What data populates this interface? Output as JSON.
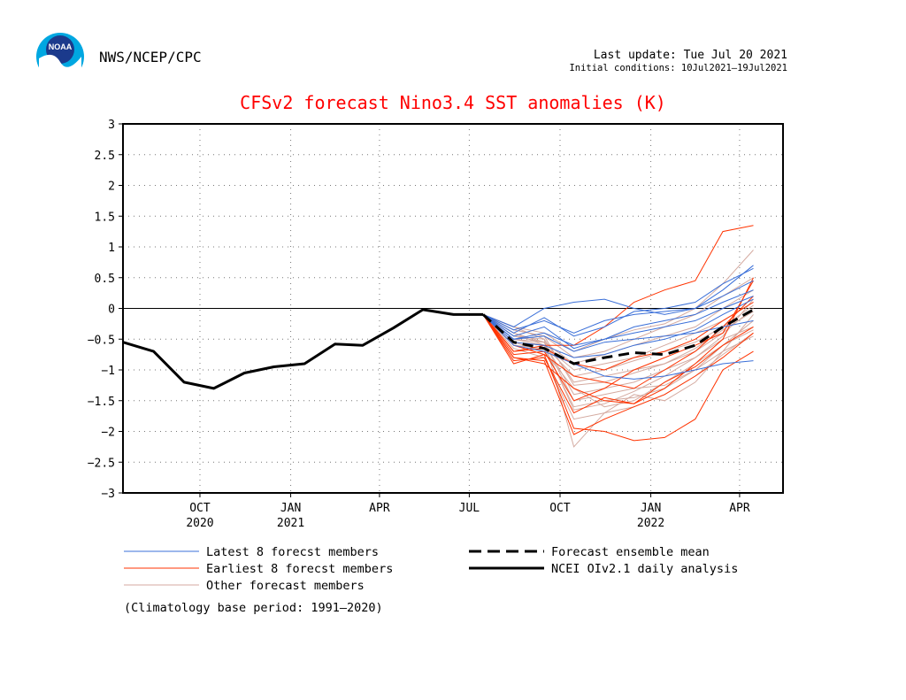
{
  "header": {
    "agency": "NWS/NCEP/CPC",
    "last_update": "Last update: Tue Jul 20 2021",
    "initial_conditions": "Initial conditions: 10Jul2021–19Jul2021",
    "logo_text": "NOAA"
  },
  "chart_data": {
    "type": "line",
    "title": "CFSv2 forecast Nino3.4 SST anomalies (K)",
    "ylim": [
      -3,
      3
    ],
    "yticks": [
      3,
      2.5,
      2,
      1.5,
      1,
      0.5,
      0,
      -0.5,
      -1,
      -1.5,
      -2,
      -2.5,
      -3
    ],
    "ytick_labels": [
      "3",
      "2.5",
      "2",
      "1.5",
      "1",
      "0.5",
      "0",
      "−0.5",
      "−1",
      "−1.5",
      "−2",
      "−2.5",
      "−3"
    ],
    "xlim": [
      "2020-07-15",
      "2022-05-15"
    ],
    "xticks": [
      {
        "date": "2020-10-01",
        "label": "OCT",
        "sublabel": "2020"
      },
      {
        "date": "2021-01-01",
        "label": "JAN",
        "sublabel": "2021"
      },
      {
        "date": "2021-04-01",
        "label": "APR",
        "sublabel": ""
      },
      {
        "date": "2021-07-01",
        "label": "JUL",
        "sublabel": ""
      },
      {
        "date": "2021-10-01",
        "label": "OCT",
        "sublabel": ""
      },
      {
        "date": "2022-01-01",
        "label": "JAN",
        "sublabel": "2022"
      },
      {
        "date": "2022-04-01",
        "label": "APR",
        "sublabel": ""
      }
    ],
    "grid": true,
    "zero_line": true,
    "colors": {
      "latest": "#3a6fd8",
      "earliest": "#ff3300",
      "other": "#d4aaa0",
      "mean": "#000000",
      "analysis": "#000000"
    },
    "analysis": {
      "name": "NCEI OIv2.1 daily analysis",
      "x": [
        "2020-07-15",
        "2020-08-15",
        "2020-09-15",
        "2020-10-15",
        "2020-11-15",
        "2020-12-15",
        "2021-01-15",
        "2021-02-15",
        "2021-03-15",
        "2021-04-15",
        "2021-05-15",
        "2021-06-15",
        "2021-07-15"
      ],
      "y": [
        -0.55,
        -0.7,
        -1.2,
        -1.3,
        -1.05,
        -0.95,
        -0.9,
        -0.58,
        -0.6,
        -0.32,
        -0.02,
        -0.1,
        -0.1
      ]
    },
    "forecast_x": [
      "2021-07-15",
      "2021-08-15",
      "2021-09-15",
      "2021-10-15",
      "2021-11-15",
      "2021-12-15",
      "2022-01-15",
      "2022-02-15",
      "2022-03-15",
      "2022-04-15"
    ],
    "ensemble_mean": {
      "name": "Forecast ensemble mean",
      "y": [
        -0.1,
        -0.55,
        -0.65,
        -0.9,
        -0.8,
        -0.72,
        -0.75,
        -0.6,
        -0.3,
        -0.02
      ]
    },
    "members": [
      {
        "group": "latest",
        "y": [
          -0.1,
          -0.35,
          -0.2,
          -0.4,
          -0.2,
          -0.1,
          -0.05,
          0.0,
          0.3,
          0.7
        ]
      },
      {
        "group": "latest",
        "y": [
          -0.1,
          -0.4,
          -0.15,
          -0.45,
          -0.3,
          -0.05,
          0.0,
          0.1,
          0.4,
          0.65
        ]
      },
      {
        "group": "latest",
        "y": [
          -0.1,
          -0.5,
          -0.4,
          -0.6,
          -0.5,
          -0.4,
          -0.3,
          -0.2,
          0.0,
          0.2
        ]
      },
      {
        "group": "latest",
        "y": [
          -0.1,
          -0.45,
          -0.3,
          -0.65,
          -0.5,
          -0.3,
          -0.2,
          -0.1,
          0.1,
          0.3
        ]
      },
      {
        "group": "latest",
        "y": [
          -0.1,
          -0.55,
          -0.6,
          -0.8,
          -0.75,
          -0.6,
          -0.5,
          -0.35,
          -0.1,
          0.15
        ]
      },
      {
        "group": "latest",
        "y": [
          -0.1,
          -0.6,
          -0.7,
          -0.9,
          -1.1,
          -1.15,
          -1.1,
          -1.0,
          -0.9,
          -0.85
        ]
      },
      {
        "group": "latest",
        "y": [
          -0.1,
          -0.3,
          0.0,
          0.1,
          0.15,
          0.0,
          -0.1,
          0.0,
          0.2,
          0.45
        ]
      },
      {
        "group": "latest",
        "y": [
          -0.1,
          -0.5,
          -0.45,
          -0.7,
          -0.55,
          -0.5,
          -0.45,
          -0.4,
          -0.3,
          -0.2
        ]
      },
      {
        "group": "earliest",
        "y": [
          -0.1,
          -0.8,
          -0.85,
          -2.05,
          -1.8,
          -1.6,
          -1.4,
          -1.1,
          -0.8,
          -0.4
        ]
      },
      {
        "group": "earliest",
        "y": [
          -0.1,
          -0.9,
          -0.75,
          -1.95,
          -2.0,
          -2.15,
          -2.1,
          -1.8,
          -1.0,
          -0.7
        ]
      },
      {
        "group": "earliest",
        "y": [
          -0.1,
          -0.7,
          -0.6,
          -0.6,
          -0.3,
          0.1,
          0.3,
          0.45,
          1.25,
          1.35
        ]
      },
      {
        "group": "earliest",
        "y": [
          -0.1,
          -0.8,
          -0.9,
          -1.3,
          -1.5,
          -1.55,
          -1.3,
          -0.9,
          -0.5,
          0.5
        ]
      },
      {
        "group": "earliest",
        "y": [
          -0.1,
          -0.6,
          -0.75,
          -1.1,
          -1.2,
          -1.3,
          -1.0,
          -0.7,
          -0.3,
          0.2
        ]
      },
      {
        "group": "earliest",
        "y": [
          -0.1,
          -0.85,
          -0.8,
          -1.7,
          -1.45,
          -1.55,
          -1.2,
          -0.95,
          -0.6,
          -0.3
        ]
      },
      {
        "group": "earliest",
        "y": [
          -0.1,
          -0.7,
          -0.65,
          -0.9,
          -1.0,
          -0.8,
          -0.7,
          -0.5,
          -0.2,
          0.1
        ]
      },
      {
        "group": "earliest",
        "y": [
          -0.1,
          -0.75,
          -0.7,
          -1.5,
          -1.3,
          -1.0,
          -0.8,
          -0.6,
          -0.4,
          0.45
        ]
      },
      {
        "group": "other",
        "y": [
          -0.1,
          -0.3,
          -0.5,
          -2.25,
          -1.7,
          -1.4,
          -1.5,
          -1.2,
          -0.7,
          -0.1
        ]
      },
      {
        "group": "other",
        "y": [
          -0.1,
          -0.4,
          -0.6,
          -1.0,
          -0.9,
          -0.8,
          -0.6,
          -0.4,
          -0.2,
          0.1
        ]
      },
      {
        "group": "other",
        "y": [
          -0.1,
          -0.5,
          -0.55,
          -1.4,
          -1.3,
          -1.2,
          -1.0,
          -0.8,
          -0.5,
          -0.3
        ]
      },
      {
        "group": "other",
        "y": [
          -0.1,
          -0.35,
          -0.45,
          -0.8,
          -0.7,
          -0.5,
          -0.3,
          -0.1,
          0.2,
          0.5
        ]
      },
      {
        "group": "other",
        "y": [
          -0.1,
          -0.45,
          -0.5,
          -1.2,
          -1.1,
          -1.0,
          -0.9,
          -0.7,
          -0.4,
          0.0
        ]
      },
      {
        "group": "other",
        "y": [
          -0.1,
          -0.6,
          -0.65,
          -1.6,
          -1.5,
          -1.45,
          -1.3,
          -1.0,
          -0.7,
          -0.45
        ]
      },
      {
        "group": "other",
        "y": [
          -0.1,
          -0.55,
          -0.7,
          -1.3,
          -1.6,
          -1.5,
          -1.2,
          -0.9,
          -0.6,
          -0.35
        ]
      },
      {
        "group": "other",
        "y": [
          -0.1,
          -0.4,
          -0.55,
          -0.9,
          -0.75,
          -0.6,
          -0.45,
          -0.3,
          0.0,
          0.3
        ]
      },
      {
        "group": "other",
        "y": [
          -0.1,
          -0.5,
          -0.6,
          -1.1,
          -1.0,
          -0.85,
          -0.7,
          -0.55,
          -0.3,
          0.05
        ]
      },
      {
        "group": "other",
        "y": [
          -0.1,
          -0.65,
          -0.8,
          -1.8,
          -1.7,
          -1.6,
          -1.4,
          -1.1,
          -0.75,
          -0.4
        ]
      },
      {
        "group": "other",
        "y": [
          -0.1,
          -0.3,
          -0.4,
          -0.7,
          -0.5,
          -0.35,
          -0.25,
          0.0,
          0.4,
          0.95
        ]
      },
      {
        "group": "other",
        "y": [
          -0.1,
          -0.45,
          -0.55,
          -1.5,
          -1.4,
          -1.3,
          -1.25,
          -1.0,
          -0.6,
          -0.2
        ]
      },
      {
        "group": "other",
        "y": [
          -0.1,
          -0.35,
          -0.45,
          -1.25,
          -1.2,
          -1.05,
          -0.9,
          -0.65,
          -0.35,
          -0.05
        ]
      },
      {
        "group": "other",
        "y": [
          -0.1,
          -0.55,
          -0.6,
          -1.65,
          -1.55,
          -1.35,
          -1.1,
          -0.8,
          -0.45,
          0.15
        ]
      }
    ],
    "legend": {
      "latest": "Latest 8 forecst members",
      "earliest": "Earliest 8 forecst members",
      "other": "Other forecast members",
      "mean": "Forecast ensemble mean",
      "analysis": "NCEI OIv2.1 daily analysis"
    },
    "note": "(Climatology base period: 1991–2020)"
  }
}
